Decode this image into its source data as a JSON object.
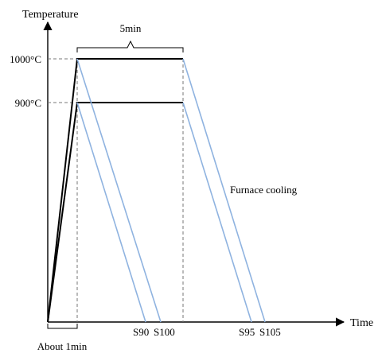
{
  "diagram": {
    "y_axis_label": "Temperature",
    "x_axis_label": "Time",
    "temp_high": "1000°C",
    "temp_low": "900°C",
    "hold_time_label": "5min",
    "heating_time_label": "About 1min",
    "cooling_label": "Furnace cooling",
    "samples": [
      "S90",
      "S100",
      "S95",
      "S105"
    ],
    "colors": {
      "profile_line": "#000000",
      "cooling_line": "#8fb3e0",
      "guide_line": "#777777"
    }
  }
}
